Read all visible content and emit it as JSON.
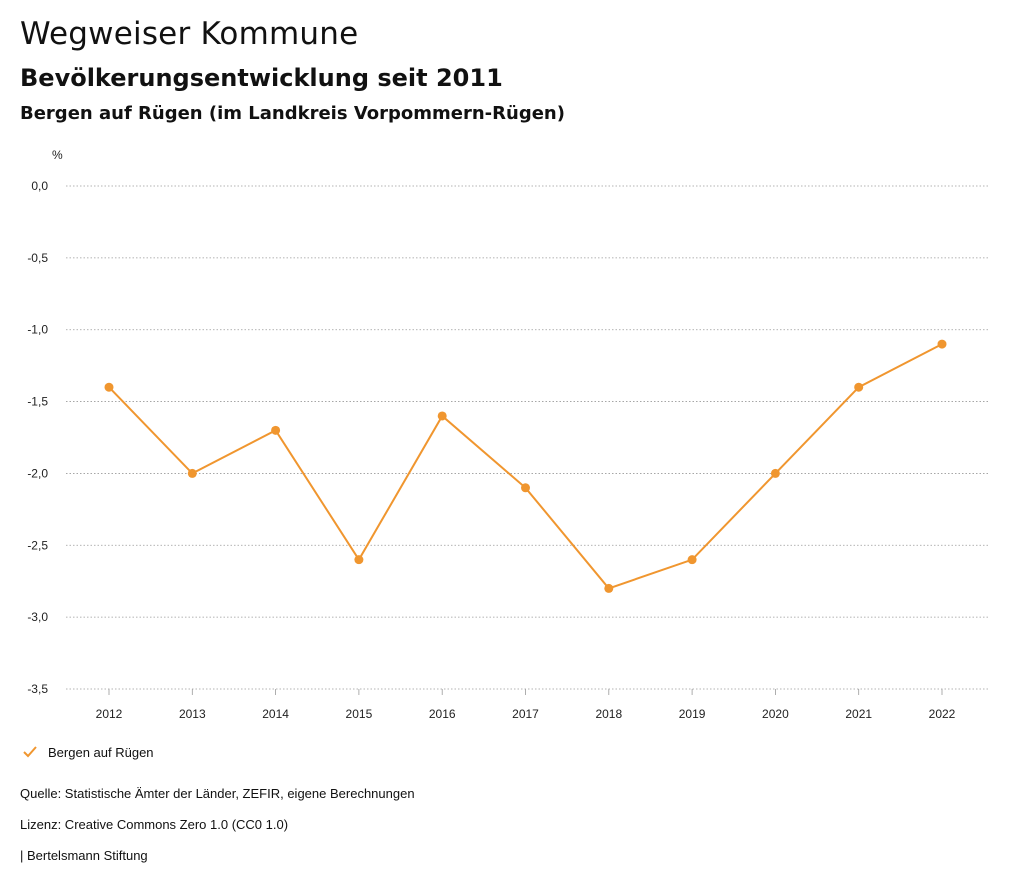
{
  "header": {
    "title": "Wegweiser Kommune",
    "subtitle": "Bevölkerungsentwicklung seit 2011",
    "region": "Bergen auf Rügen (im Landkreis Vorpommern-Rügen)"
  },
  "chart_data": {
    "type": "line",
    "ylabel": "%",
    "ylim": [
      -3.5,
      0.0
    ],
    "y_ticks": [
      "0,0",
      "-0,5",
      "-1,0",
      "-1,5",
      "-2,0",
      "-2,5",
      "-3,0",
      "-3,5"
    ],
    "y_tick_values": [
      0.0,
      -0.5,
      -1.0,
      -1.5,
      -2.0,
      -2.5,
      -3.0,
      -3.5
    ],
    "x": [
      "2012",
      "2013",
      "2014",
      "2015",
      "2016",
      "2017",
      "2018",
      "2019",
      "2020",
      "2021",
      "2022"
    ],
    "series": [
      {
        "name": "Bergen auf Rügen",
        "color": "#f0962f",
        "values": [
          -1.4,
          -2.0,
          -1.7,
          -2.6,
          -1.6,
          -2.1,
          -2.8,
          -2.6,
          -2.0,
          -1.4,
          -1.1
        ]
      }
    ],
    "grid": true,
    "legend_position": "bottom-left"
  },
  "footer": {
    "source": "Quelle: Statistische Ämter der Länder, ZEFIR, eigene Berechnungen",
    "license": "Lizenz: Creative Commons Zero 1.0 (CC0 1.0)",
    "publisher": "| Bertelsmann Stiftung"
  }
}
